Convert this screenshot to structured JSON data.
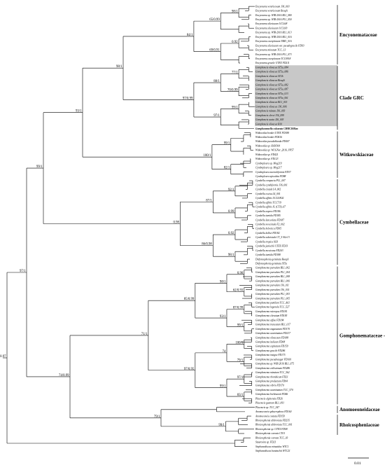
{
  "families": [
    {
      "label": "Encyonemataceae"
    },
    {
      "label": "Clade GRC"
    },
    {
      "label": "Witkowskiaceae"
    },
    {
      "label": "Cymbellaceae"
    },
    {
      "label": "Gomphonemataceae - ?"
    },
    {
      "label": "Anomoeoneidaceae"
    },
    {
      "label": "Rhoicospheniaceae"
    }
  ],
  "highlight_taxon": "Gomphonemella calcarata CBMC368km",
  "scale_bar": {
    "label": "0.01"
  },
  "supports": [
    "98/1",
    "65/0.99",
    "0.92",
    "69/0.91",
    "84/1",
    "77/1",
    "70/0.99",
    "88/1",
    "99/1",
    "97/1",
    "97/0.99",
    "99/1",
    "82/1",
    "100/1",
    "92/1",
    "0.99",
    "87/1",
    "0.92",
    "98/1",
    "86/0.98",
    "0.98",
    "0.90",
    "62/0.93",
    "98/1",
    "87/0.99",
    "99/1",
    "93/1",
    "85/0.99",
    "100/1",
    "79/1",
    "74",
    "97/1",
    "83/1",
    "99/1",
    "97/0.95",
    "71/1",
    "99/1",
    "98/1",
    "93/1",
    "99/1",
    "79/1",
    "74/0.99",
    "97/1",
    "0.97",
    "99/1",
    "60/1",
    "62/0.88",
    "94/1",
    "77/0.96",
    "55",
    "99/1",
    "84/1",
    "59/1",
    "80/0.97",
    "100/1",
    "56/1",
    "51/1",
    "89/1",
    "100/1",
    "84/1",
    "100/1",
    "100/1",
    "100/1",
    "77",
    "1",
    "1",
    "1"
  ],
  "taxa": [
    "Encyonema ventricosum J36_003",
    "Encyonema ventricosum BeaqA",
    "Encyonema sp. WIR-2016 BL1_080",
    "Encyonema sp. WIR-2016 PL1_050",
    "Encyonema silesiacum UCL6/8",
    "Encyonema silesiacum UCL6/9",
    "Encyonema sp. WIR-2016 BL1_013",
    "Encyonema sp. WIR-2016 BL1_016",
    "Encyonema caespitosum TBZ1_016",
    "Encyonema silesiacum var. pseudogracile FD93",
    "Encyonema minutum TCC_13",
    "Encyonema sp. WIR-2016 PL1_073",
    "Encyonema caespitosum TCC0918",
    "Encyonema gracile UTEX FD211",
    "Gomphoneis olivacea ST5a_084",
    "Gomphoneis olivacea ST5a_086",
    "Gomphoneis olivacea ST2b",
    "Gomphoneis olivacea BeaqA",
    "Gomphoneis olivacea ST5a_082",
    "Gomphoneis olivacea ST5a_087",
    "Gomphoneis olivacea ST5a_013",
    "Gomphoneis olivacea ST5a_061",
    "Gomphoneis olivacea BL1_015",
    "Gomphoneis olivacea J36_006",
    "Gomphoneis minuta J36_093",
    "Gomphoneis clevei J36_099",
    "Gomphoneis acuta J26_003",
    "Gomphoneis olivacea B10",
    "Gomphonemella calcarata CBMC368km",
    "Witkowskia bonkei UTEX FD188",
    "Witkowskia bonkei FD416",
    "Witkowskia pseudoblanda FD407",
    "Witkowskia sp. HAN364",
    "Witkowskia sp. WUGNer_2016_VP57",
    "Witkowskia sp. FD421",
    "Witkowskia sp. FD123",
    "Cymbopleura sp. Mog219",
    "Cymbopleura sp. Mog217",
    "Cymbopleura naviculiformis FD37",
    "Cymbopleura apiculata FD88",
    "Cymbella compacta PL1_007",
    "Cymbella cymbiformis J36_001",
    "Cymbella cistula L4_002",
    "Cymbella excisa L4_001",
    "Cymbella affinis UCL5/K02",
    "Cymbella affinis TCC719",
    "Cymbella affinis JL (CTS)_07",
    "Cymbella aspera FD186",
    "Cymbella tumida FD185",
    "Cymbella lanceolata FD187",
    "Cymbella neocistula F2_002",
    "Cymbella helvetica FD05",
    "Cymbella kolbei FD182",
    "Cymbella subcistula CT_5 SGe13",
    "Cymbella tropica SG9",
    "Cymbella janischii UTEX FD33",
    "Cymbella mexicana FD203",
    "Cymbella tumida FD188",
    "Didymosphenia geminata BeaqA",
    "Didymosphenia geminata ST5a",
    "Gomphonema parvulum BL1_002",
    "Gomphonema parvulum PL1_004",
    "Gomphonema parvulum BL1_008",
    "Gomphonema parvulum BL1_006",
    "Gomphonema parvulum J36_011",
    "Gomphonema parvulum J36_014",
    "Gomphonema parvulum PL1_003",
    "Gomphonema parvulum PL1_005",
    "Gomphonema pumilum TCC_A61",
    "Gomphonema lagenula TCC_527",
    "Gomphonema micropus FD181",
    "Gomphonema clavatum FD183",
    "Gomphonema affine FD184",
    "Gomphonema truncatum BL1_017",
    "Gomphonema angustatum FD170",
    "Gomphonema acuminatum FD217",
    "Gomphonema olivaceum FD188",
    "Gomphonema italicum FD08",
    "Gomphonema capitatum FD159",
    "Gomphonema gracile FD286",
    "Gomphonema insigne FD175",
    "Gomphonema pseudoaugur FD160",
    "Gomphonema sp. WIR-2016 BL1_075",
    "Gomphonema exilissimum FD286",
    "Gomphonema minutum TCC_562",
    "Gomphonema rhombicum FD21",
    "Gomphonema productum FD04",
    "Gomphonema vibrio FD170",
    "Gomphonema acuminatum TCC_570",
    "Gomphonema brebissonii FD46",
    "Placoneis elginensis FD26",
    "Placoneis gastrum BL1_091",
    "Placoneis sp. TCC_547",
    "Anomoeoneis sphaerophora FD160",
    "Anomoeoneis costata FD159",
    "Rhoicosphenia abbreviata FD235",
    "Rhoicosphenia abbreviata TCC_001",
    "Rhoicosphenia sp. UTEX FD08",
    "Rhoicosphenia curvata CT01",
    "Rhoicosphenia curvata TCC_03",
    "Staurosira sp. FD21",
    "Stephanodiscus minutulus WTC1",
    "Stephanodiscus hantzschii WTC21"
  ]
}
